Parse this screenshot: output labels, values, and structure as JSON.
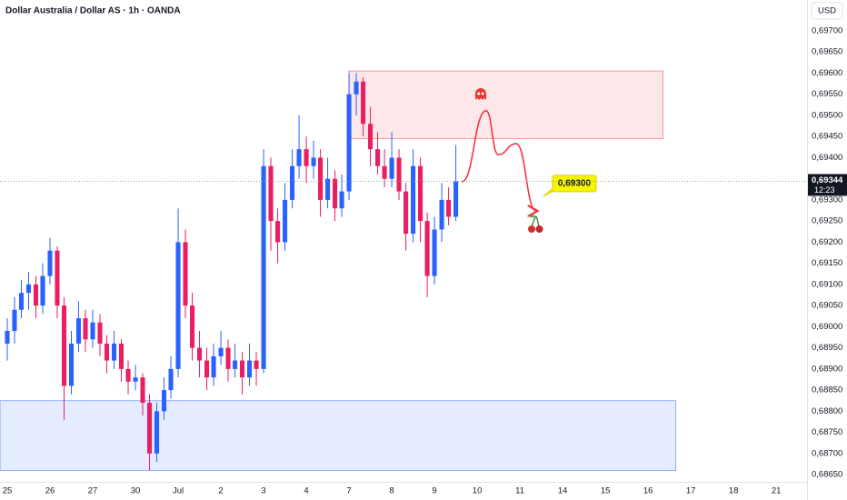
{
  "chart_data": {
    "type": "candlestick",
    "title": "Dollar Australia / Dollar AS · 1h · OANDA",
    "currency": "USD",
    "up_color": "#2962ff",
    "down_color": "#e91e63",
    "grid": false,
    "xlim": [
      -0.17,
      18.72
    ],
    "ylim": [
      0.68633,
      0.69773
    ],
    "xticks": [
      {
        "value": 0,
        "label": "25"
      },
      {
        "value": 1,
        "label": "26"
      },
      {
        "value": 2,
        "label": "27"
      },
      {
        "value": 3,
        "label": "30"
      },
      {
        "value": 4,
        "label": "Jul"
      },
      {
        "value": 5,
        "label": "2"
      },
      {
        "value": 6,
        "label": "3"
      },
      {
        "value": 7,
        "label": "4"
      },
      {
        "value": 8,
        "label": "7"
      },
      {
        "value": 9,
        "label": "8"
      },
      {
        "value": 10,
        "label": "9"
      },
      {
        "value": 11,
        "label": "10"
      },
      {
        "value": 12,
        "label": "11"
      },
      {
        "value": 13,
        "label": "14"
      },
      {
        "value": 14,
        "label": "15"
      },
      {
        "value": 15,
        "label": "16"
      },
      {
        "value": 16,
        "label": "17"
      },
      {
        "value": 17,
        "label": "18"
      },
      {
        "value": 18,
        "label": "21"
      }
    ],
    "yticks": [
      {
        "value": 0.697,
        "label": "0,69700"
      },
      {
        "value": 0.6965,
        "label": "0,69650"
      },
      {
        "value": 0.696,
        "label": "0,69600"
      },
      {
        "value": 0.6955,
        "label": "0,69550"
      },
      {
        "value": 0.695,
        "label": "0,69500"
      },
      {
        "value": 0.6945,
        "label": "0,69450"
      },
      {
        "value": 0.694,
        "label": "0,69400"
      },
      {
        "value": 0.693,
        "label": "0,69300"
      },
      {
        "value": 0.6925,
        "label": "0,69250"
      },
      {
        "value": 0.692,
        "label": "0,69200"
      },
      {
        "value": 0.6915,
        "label": "0,69150"
      },
      {
        "value": 0.691,
        "label": "0,69100"
      },
      {
        "value": 0.6905,
        "label": "0,69050"
      },
      {
        "value": 0.69,
        "label": "0,69000"
      },
      {
        "value": 0.6895,
        "label": "0,68950"
      },
      {
        "value": 0.689,
        "label": "0,68900"
      },
      {
        "value": 0.6885,
        "label": "0,68850"
      },
      {
        "value": 0.688,
        "label": "0,68800"
      },
      {
        "value": 0.6875,
        "label": "0,68750"
      },
      {
        "value": 0.687,
        "label": "0,68700"
      },
      {
        "value": 0.6865,
        "label": "0,68650"
      }
    ],
    "x": [
      0,
      0.17,
      0.33,
      0.5,
      0.67,
      0.83,
      1,
      1.17,
      1.33,
      1.5,
      1.67,
      1.83,
      2,
      2.17,
      2.33,
      2.5,
      2.67,
      2.83,
      3,
      3.17,
      3.33,
      3.5,
      3.67,
      3.83,
      4,
      4.17,
      4.33,
      4.5,
      4.67,
      4.83,
      5,
      5.17,
      5.33,
      5.5,
      5.67,
      5.83,
      6,
      6.17,
      6.33,
      6.5,
      6.67,
      6.83,
      7,
      7.17,
      7.33,
      7.5,
      7.67,
      7.83,
      8,
      8.17,
      8.33,
      8.5,
      8.67,
      8.83,
      9,
      9.17,
      9.33,
      9.5,
      9.67,
      9.83,
      10,
      10.17,
      10.33,
      10.5
    ],
    "open": [
      0.6896,
      0.6899,
      0.6904,
      0.6908,
      0.691,
      0.6905,
      0.6912,
      0.6918,
      0.6905,
      0.6886,
      0.6896,
      0.6902,
      0.6897,
      0.6901,
      0.6896,
      0.6892,
      0.6896,
      0.689,
      0.6887,
      0.6888,
      0.6882,
      0.687,
      0.688,
      0.6885,
      0.689,
      0.692,
      0.6905,
      0.6895,
      0.6892,
      0.6888,
      0.6893,
      0.6895,
      0.689,
      0.6892,
      0.6888,
      0.6892,
      0.689,
      0.6938,
      0.6925,
      0.692,
      0.693,
      0.6938,
      0.6942,
      0.6938,
      0.694,
      0.693,
      0.6935,
      0.6928,
      0.6932,
      0.6955,
      0.6958,
      0.6948,
      0.6942,
      0.6938,
      0.6935,
      0.694,
      0.6932,
      0.6922,
      0.6938,
      0.6925,
      0.6912,
      0.6923,
      0.693,
      0.6926
    ],
    "high": [
      0.6902,
      0.6907,
      0.6911,
      0.6913,
      0.6912,
      0.6915,
      0.6921,
      0.6919,
      0.6907,
      0.6899,
      0.6906,
      0.6904,
      0.6904,
      0.6903,
      0.6898,
      0.6899,
      0.6897,
      0.6892,
      0.6891,
      0.6889,
      0.6884,
      0.6882,
      0.6888,
      0.6893,
      0.6928,
      0.6923,
      0.6908,
      0.6899,
      0.6895,
      0.6896,
      0.6899,
      0.6897,
      0.6896,
      0.6894,
      0.6896,
      0.6894,
      0.6942,
      0.694,
      0.6928,
      0.6934,
      0.6942,
      0.695,
      0.6945,
      0.6944,
      0.6942,
      0.694,
      0.6937,
      0.6936,
      0.696,
      0.696,
      0.6959,
      0.6952,
      0.6946,
      0.6942,
      0.6946,
      0.6942,
      0.6934,
      0.6942,
      0.694,
      0.6927,
      0.6926,
      0.6934,
      0.6933,
      0.6943
    ],
    "low": [
      0.6892,
      0.6896,
      0.6902,
      0.6904,
      0.6902,
      0.6903,
      0.691,
      0.6902,
      0.6878,
      0.6884,
      0.6894,
      0.6894,
      0.6895,
      0.6893,
      0.6889,
      0.689,
      0.6887,
      0.6884,
      0.6885,
      0.6879,
      0.6866,
      0.6868,
      0.6878,
      0.6883,
      0.6888,
      0.6902,
      0.6892,
      0.6888,
      0.6885,
      0.6886,
      0.6891,
      0.6887,
      0.6888,
      0.6884,
      0.6886,
      0.6886,
      0.6889,
      0.6918,
      0.6915,
      0.6918,
      0.6928,
      0.6935,
      0.6934,
      0.6935,
      0.6926,
      0.6928,
      0.6925,
      0.6926,
      0.693,
      0.695,
      0.6945,
      0.6938,
      0.6936,
      0.6933,
      0.6933,
      0.693,
      0.6918,
      0.692,
      0.692,
      0.6907,
      0.691,
      0.692,
      0.6924,
      0.6925
    ],
    "close": [
      0.6899,
      0.6904,
      0.6908,
      0.691,
      0.6905,
      0.6912,
      0.6918,
      0.6905,
      0.6886,
      0.6896,
      0.6902,
      0.6897,
      0.6901,
      0.6896,
      0.6892,
      0.6896,
      0.689,
      0.6887,
      0.6888,
      0.6882,
      0.687,
      0.688,
      0.6885,
      0.689,
      0.692,
      0.6905,
      0.6895,
      0.6892,
      0.6888,
      0.6893,
      0.6895,
      0.689,
      0.6892,
      0.6888,
      0.6892,
      0.689,
      0.6938,
      0.6925,
      0.692,
      0.693,
      0.6938,
      0.6942,
      0.6938,
      0.694,
      0.693,
      0.6935,
      0.6928,
      0.6932,
      0.6955,
      0.6958,
      0.6948,
      0.6942,
      0.6938,
      0.6935,
      0.694,
      0.6932,
      0.6922,
      0.6938,
      0.6925,
      0.6912,
      0.6923,
      0.693,
      0.6926,
      0.69344
    ],
    "zones": [
      {
        "x": [
          8.0,
          15.35
        ],
        "y": [
          0.69445,
          0.69605
        ],
        "color": "#f23645"
      },
      {
        "x": [
          -0.17,
          15.65
        ],
        "y": [
          0.6866,
          0.68825
        ],
        "color": "#2962ff"
      }
    ],
    "projection": {
      "x": [
        10.64,
        11.21,
        11.49,
        11.91,
        12.38
      ],
      "y": [
        0.69343,
        0.69511,
        0.69407,
        0.69433,
        0.69274
      ],
      "color": "#f23645"
    },
    "target": {
      "value": 0.693,
      "label": "0,69300"
    },
    "last_price": {
      "value": 0.69344,
      "label": "0,69344"
    },
    "countdown": "12:23"
  }
}
